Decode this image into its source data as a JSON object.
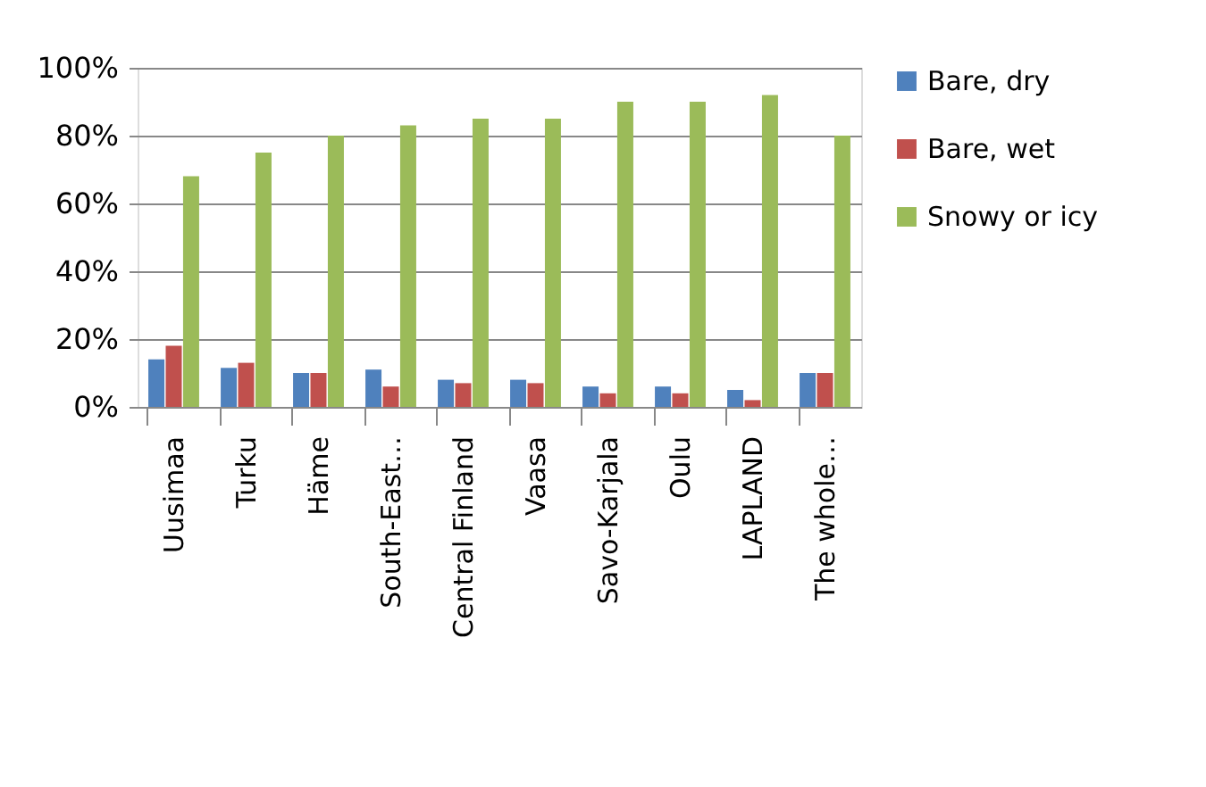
{
  "chart_data": {
    "type": "bar",
    "categories": [
      "Uusimaa",
      "Turku",
      "Häme",
      "South-East…",
      "Central Finland",
      "Vaasa",
      "Savo-Karjala",
      "Oulu",
      "LAPLAND",
      "The whole…"
    ],
    "series": [
      {
        "name": "Bare, dry",
        "color": "#4f81bd",
        "values": [
          14,
          11.5,
          10,
          11,
          8,
          8,
          6,
          6,
          5,
          10
        ]
      },
      {
        "name": "Bare, wet",
        "color": "#c0504d",
        "values": [
          18,
          13,
          10,
          6,
          7,
          7,
          4,
          4,
          2,
          10
        ]
      },
      {
        "name": "Snowy or icy",
        "color": "#9bbb59",
        "values": [
          68,
          75,
          80,
          83,
          85,
          85,
          90,
          90,
          92,
          80
        ]
      }
    ],
    "ylim": [
      0,
      100
    ],
    "yticks": [
      {
        "value": 0,
        "label": "0%"
      },
      {
        "value": 20,
        "label": "20%"
      },
      {
        "value": 40,
        "label": "40%"
      },
      {
        "value": 60,
        "label": "60%"
      },
      {
        "value": 80,
        "label": "80%"
      },
      {
        "value": 100,
        "label": "100%"
      }
    ],
    "grid": "y",
    "legend": "right"
  }
}
